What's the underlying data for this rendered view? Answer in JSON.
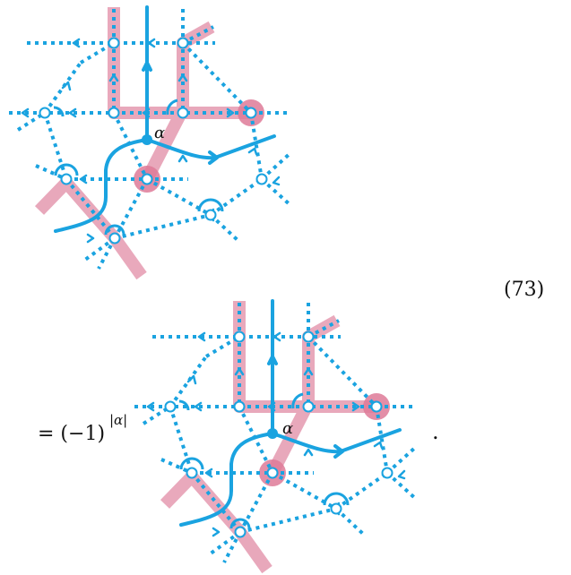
{
  "equation_number": "(73)",
  "prefix": "= (−1)",
  "prefix_exponent": "|α|",
  "alpha_label": "α",
  "trailing_period": ".",
  "colors": {
    "network": "#1aa3e0",
    "highlight": "#e59ab0",
    "highlight_node": "#de7a98",
    "node_fill": "#ffffff"
  }
}
